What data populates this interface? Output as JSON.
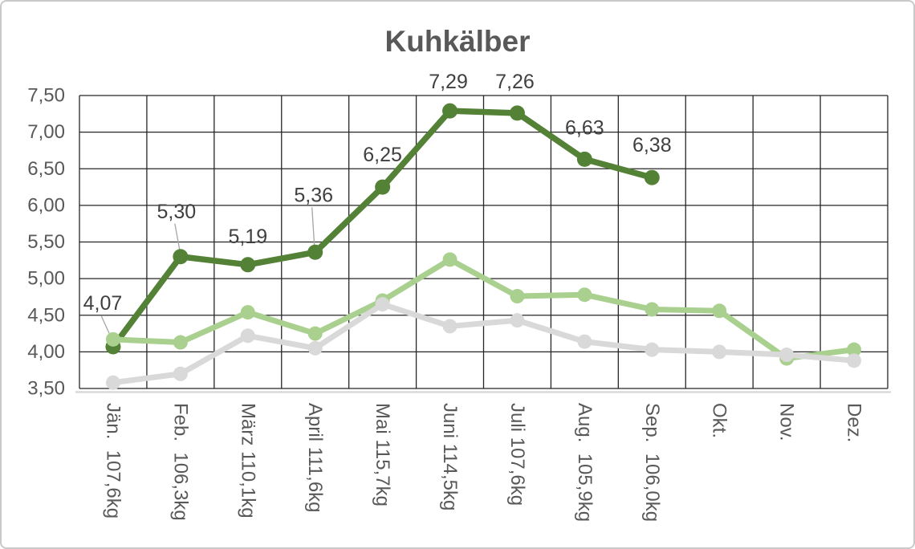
{
  "title": "Kuhkälber",
  "colors": {
    "background": "#ffffff",
    "frame_border": "#c9c9c9",
    "gridline": "#262626",
    "axis_line": "#d9d9d9",
    "tick_text": "#595959",
    "title_text": "#595959",
    "data_label_text": "#404040",
    "leader_line": "#a6a6a6"
  },
  "chart_data": {
    "type": "line",
    "title": "Kuhkälber",
    "legend": "none",
    "grid": {
      "horizontal": true,
      "vertical": true
    },
    "y_axis": {
      "min": 3.5,
      "max": 7.5,
      "step": 0.5,
      "tick_labels": [
        "7,50",
        "7,00",
        "6,50",
        "6,00",
        "5,50",
        "5,00",
        "4,50",
        "4,00",
        "3,50"
      ]
    },
    "categories": [
      {
        "month": "Jän.",
        "weight": "107,6kg"
      },
      {
        "month": "Feb.",
        "weight": "106,3kg"
      },
      {
        "month": "März",
        "weight": "110,1kg"
      },
      {
        "month": "April",
        "weight": "111,6kg"
      },
      {
        "month": "Mai",
        "weight": "115,7kg"
      },
      {
        "month": "Juni",
        "weight": "114,5kg"
      },
      {
        "month": "Juli",
        "weight": "107,6kg"
      },
      {
        "month": "Aug.",
        "weight": "105,9kg"
      },
      {
        "month": "Sep.",
        "weight": "106,0kg"
      },
      {
        "month": "Okt.",
        "weight": ""
      },
      {
        "month": "Nov.",
        "weight": ""
      },
      {
        "month": "Dez.",
        "weight": ""
      }
    ],
    "series": [
      {
        "name": "dark-green",
        "color": "#538135",
        "marker": "circle",
        "line_width": 7.5,
        "marker_radius": 9.5,
        "values": [
          4.07,
          5.3,
          5.19,
          5.36,
          6.25,
          7.29,
          7.26,
          6.63,
          6.38,
          null,
          null,
          null
        ],
        "data_labels": [
          "4,07",
          "5,30",
          "5,19",
          "5,36",
          "6,25",
          "7,29",
          "7,26",
          "6,63",
          "6,38"
        ],
        "label_offsets": [
          {
            "dx": -13,
            "dy": -54,
            "leader": true
          },
          {
            "dx": -5,
            "dy": -56,
            "leader": true
          },
          {
            "dx": 0,
            "dy": -35,
            "leader": false
          },
          {
            "dx": -2,
            "dy": -71,
            "leader": true
          },
          {
            "dx": 0,
            "dy": -40,
            "leader": false
          },
          {
            "dx": -2,
            "dy": -36,
            "leader": false
          },
          {
            "dx": -3,
            "dy": -39,
            "leader": false
          },
          {
            "dx": 0,
            "dy": -39,
            "leader": false
          },
          {
            "dx": 0,
            "dy": -40,
            "leader": false
          }
        ]
      },
      {
        "name": "light-green",
        "color": "#a9d08e",
        "marker": "circle",
        "line_width": 7,
        "marker_radius": 9,
        "values": [
          4.17,
          4.13,
          4.54,
          4.25,
          4.7,
          5.26,
          4.76,
          4.78,
          4.58,
          4.56,
          3.91,
          4.03
        ]
      },
      {
        "name": "gray",
        "color": "#d9d9d9",
        "marker": "circle",
        "line_width": 7,
        "marker_radius": 9,
        "values": [
          3.58,
          3.7,
          4.22,
          4.05,
          4.65,
          4.35,
          4.43,
          4.14,
          4.03,
          4.0,
          3.96,
          3.88
        ]
      }
    ]
  }
}
